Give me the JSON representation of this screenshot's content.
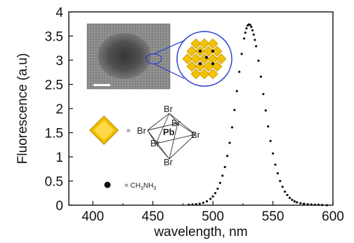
{
  "chart_data": {
    "type": "scatter",
    "xlabel": "wavelength, nm",
    "ylabel": "Fluorescence (a.u)",
    "xlim": [
      380,
      600
    ],
    "ylim": [
      0,
      4
    ],
    "x_ticks": [
      {
        "value": 400,
        "label": "400"
      },
      {
        "value": 450,
        "label": "450"
      },
      {
        "value": 500,
        "label": "500"
      },
      {
        "value": 550,
        "label": "550"
      },
      {
        "value": 600,
        "label": "600"
      }
    ],
    "y_ticks": [
      {
        "value": 0,
        "label": "0"
      },
      {
        "value": 0.5,
        "label": "0.5"
      },
      {
        "value": 1,
        "label": "1"
      },
      {
        "value": 1.5,
        "label": "1.5"
      },
      {
        "value": 2,
        "label": "2"
      },
      {
        "value": 2.5,
        "label": "2.5"
      },
      {
        "value": 3,
        "label": "3"
      },
      {
        "value": 3.5,
        "label": "3.5"
      },
      {
        "value": 4,
        "label": "4"
      }
    ],
    "series": [
      {
        "marker_color": "#111111",
        "x": [
          480,
          483,
          486,
          489,
          492,
          495,
          498,
          500,
          502,
          504,
          506,
          508,
          510,
          512,
          514,
          516,
          518,
          520,
          522,
          524,
          526,
          527,
          528,
          529,
          530,
          531,
          532,
          533,
          534,
          535,
          536,
          538,
          540,
          542,
          544,
          546,
          548,
          550,
          552,
          554,
          556,
          558,
          560,
          562,
          564,
          566,
          568,
          570,
          573,
          576,
          579,
          582,
          585,
          588,
          591,
          595
        ],
        "y": [
          0.01,
          0.015,
          0.02,
          0.03,
          0.05,
          0.08,
          0.13,
          0.18,
          0.25,
          0.34,
          0.46,
          0.61,
          0.79,
          1.02,
          1.29,
          1.61,
          1.97,
          2.36,
          2.76,
          3.13,
          3.45,
          3.57,
          3.66,
          3.72,
          3.74,
          3.73,
          3.69,
          3.62,
          3.53,
          3.42,
          3.29,
          2.99,
          2.66,
          2.3,
          1.96,
          1.63,
          1.33,
          1.07,
          0.84,
          0.66,
          0.5,
          0.38,
          0.28,
          0.21,
          0.15,
          0.11,
          0.08,
          0.06,
          0.04,
          0.03,
          0.02,
          0.015,
          0.01,
          0.01,
          0.005,
          0.0
        ]
      }
    ],
    "annotations": {
      "legend_diamond_text": "=",
      "mol_atoms": [
        "Br",
        "Br",
        "Br",
        "Pb",
        "Br",
        "Br",
        "Br"
      ],
      "legend_dot_text_prefix": "= CH",
      "legend_dot_sub1": "3",
      "legend_dot_mid": "NH",
      "legend_dot_sub2": "3"
    },
    "colors": {
      "diamond_fill": "#f2c200",
      "diamond_edge": "#c89400",
      "inset_circle": "#2a3fd0",
      "tem_bg": "#8a8a8a"
    }
  }
}
